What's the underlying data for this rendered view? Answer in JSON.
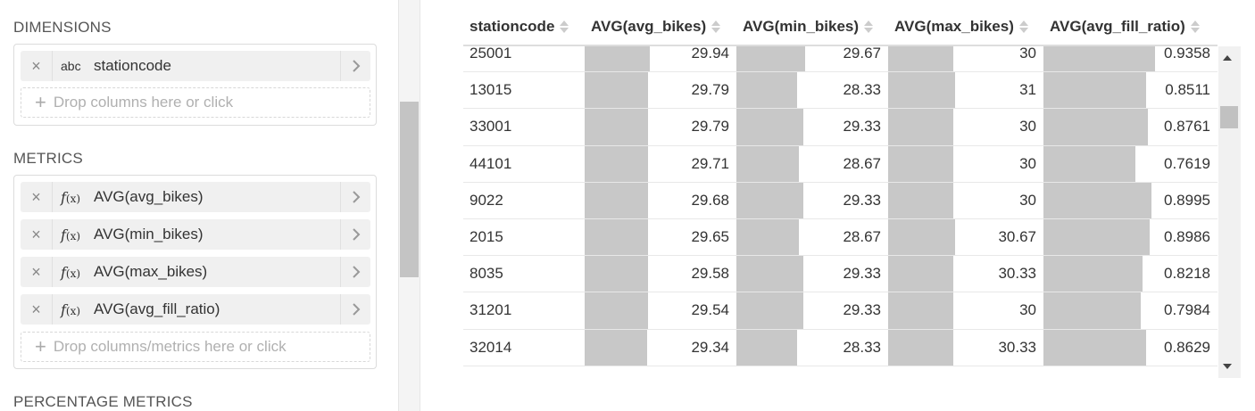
{
  "panel": {
    "dimensions_title": "DIMENSIONS",
    "dimensions": [
      {
        "type": "abc",
        "label": "stationcode"
      }
    ],
    "dimensions_drop": "Drop columns here or click",
    "metrics_title": "METRICS",
    "metrics": [
      {
        "type": "f(x)",
        "label": "AVG(avg_bikes)"
      },
      {
        "type": "f(x)",
        "label": "AVG(min_bikes)"
      },
      {
        "type": "f(x)",
        "label": "AVG(max_bikes)"
      },
      {
        "type": "f(x)",
        "label": "AVG(avg_fill_ratio)"
      }
    ],
    "metrics_drop": "Drop columns/metrics here or click",
    "percentage_title": "PERCENTAGE METRICS",
    "remove_glyph": "×",
    "add_glyph": "+"
  },
  "table": {
    "columns": [
      "stationcode",
      "AVG(avg_bikes)",
      "AVG(min_bikes)",
      "AVG(max_bikes)",
      "AVG(avg_fill_ratio)"
    ],
    "rows": [
      {
        "stationcode": "25001",
        "avg_bikes": "29.94",
        "min_bikes": "29.67",
        "max_bikes": "30",
        "fill_ratio": "0.9358",
        "bar": [
          0.43,
          0.45,
          0.42,
          0.64
        ]
      },
      {
        "stationcode": "13015",
        "avg_bikes": "29.79",
        "min_bikes": "28.33",
        "max_bikes": "31",
        "fill_ratio": "0.8511",
        "bar": [
          0.42,
          0.4,
          0.43,
          0.59
        ]
      },
      {
        "stationcode": "33001",
        "avg_bikes": "29.79",
        "min_bikes": "29.33",
        "max_bikes": "30",
        "fill_ratio": "0.8761",
        "bar": [
          0.42,
          0.44,
          0.42,
          0.6
        ]
      },
      {
        "stationcode": "44101",
        "avg_bikes": "29.71",
        "min_bikes": "28.67",
        "max_bikes": "30",
        "fill_ratio": "0.7619",
        "bar": [
          0.42,
          0.41,
          0.42,
          0.53
        ]
      },
      {
        "stationcode": "9022",
        "avg_bikes": "29.68",
        "min_bikes": "29.33",
        "max_bikes": "30",
        "fill_ratio": "0.8995",
        "bar": [
          0.42,
          0.44,
          0.42,
          0.62
        ]
      },
      {
        "stationcode": "2015",
        "avg_bikes": "29.65",
        "min_bikes": "28.67",
        "max_bikes": "30.67",
        "fill_ratio": "0.8986",
        "bar": [
          0.42,
          0.41,
          0.43,
          0.61
        ]
      },
      {
        "stationcode": "8035",
        "avg_bikes": "29.58",
        "min_bikes": "29.33",
        "max_bikes": "30.33",
        "fill_ratio": "0.8218",
        "bar": [
          0.42,
          0.44,
          0.42,
          0.57
        ]
      },
      {
        "stationcode": "31201",
        "avg_bikes": "29.54",
        "min_bikes": "29.33",
        "max_bikes": "30",
        "fill_ratio": "0.7984",
        "bar": [
          0.42,
          0.44,
          0.42,
          0.56
        ]
      },
      {
        "stationcode": "32014",
        "avg_bikes": "29.34",
        "min_bikes": "28.33",
        "max_bikes": "30.33",
        "fill_ratio": "0.8629",
        "bar": [
          0.41,
          0.4,
          0.42,
          0.59
        ]
      }
    ]
  }
}
